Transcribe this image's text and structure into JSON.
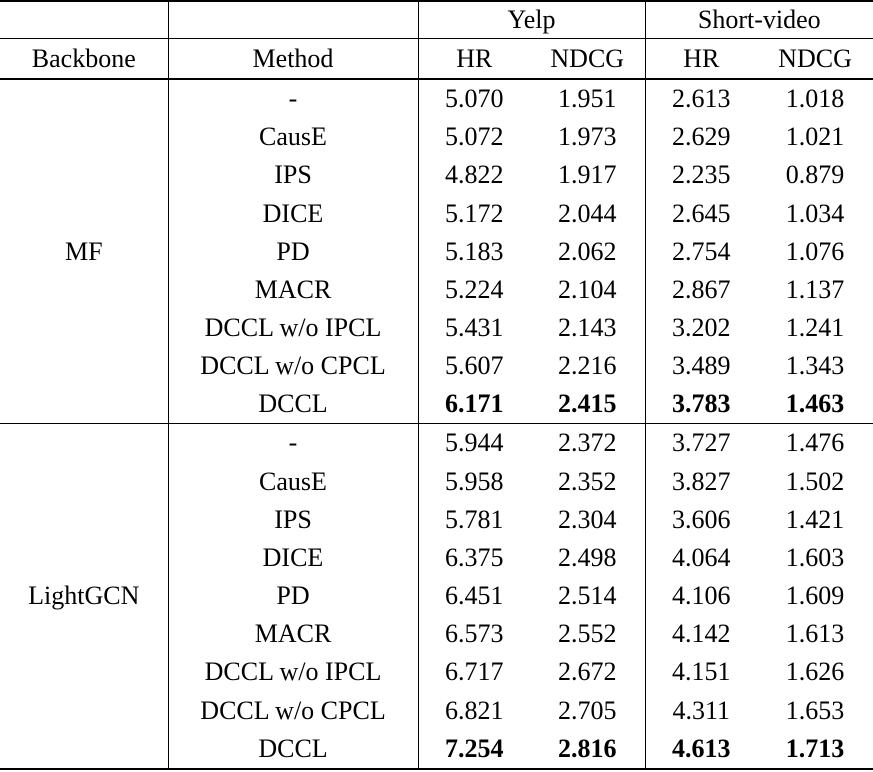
{
  "colors": {
    "text": "#000000",
    "background": "#ffffff",
    "rule": "#000000"
  },
  "table": {
    "header": {
      "backbone": "Backbone",
      "method": "Method",
      "datasets": [
        {
          "name": "Yelp",
          "metrics": [
            "HR",
            "NDCG"
          ]
        },
        {
          "name": "Short-video",
          "metrics": [
            "HR",
            "NDCG"
          ]
        }
      ]
    },
    "groups": [
      {
        "backbone": "MF",
        "rows": [
          {
            "method": "-",
            "values": [
              "5.070",
              "1.951",
              "2.613",
              "1.018"
            ],
            "bold": false
          },
          {
            "method": "CausE",
            "values": [
              "5.072",
              "1.973",
              "2.629",
              "1.021"
            ],
            "bold": false
          },
          {
            "method": "IPS",
            "values": [
              "4.822",
              "1.917",
              "2.235",
              "0.879"
            ],
            "bold": false
          },
          {
            "method": "DICE",
            "values": [
              "5.172",
              "2.044",
              "2.645",
              "1.034"
            ],
            "bold": false
          },
          {
            "method": "PD",
            "values": [
              "5.183",
              "2.062",
              "2.754",
              "1.076"
            ],
            "bold": false
          },
          {
            "method": "MACR",
            "values": [
              "5.224",
              "2.104",
              "2.867",
              "1.137"
            ],
            "bold": false
          },
          {
            "method": "DCCL w/o IPCL",
            "values": [
              "5.431",
              "2.143",
              "3.202",
              "1.241"
            ],
            "bold": false
          },
          {
            "method": "DCCL w/o CPCL",
            "values": [
              "5.607",
              "2.216",
              "3.489",
              "1.343"
            ],
            "bold": false
          },
          {
            "method": "DCCL",
            "values": [
              "6.171",
              "2.415",
              "3.783",
              "1.463"
            ],
            "bold": true
          }
        ]
      },
      {
        "backbone": "LightGCN",
        "rows": [
          {
            "method": "-",
            "values": [
              "5.944",
              "2.372",
              "3.727",
              "1.476"
            ],
            "bold": false
          },
          {
            "method": "CausE",
            "values": [
              "5.958",
              "2.352",
              "3.827",
              "1.502"
            ],
            "bold": false
          },
          {
            "method": "IPS",
            "values": [
              "5.781",
              "2.304",
              "3.606",
              "1.421"
            ],
            "bold": false
          },
          {
            "method": "DICE",
            "values": [
              "6.375",
              "2.498",
              "4.064",
              "1.603"
            ],
            "bold": false
          },
          {
            "method": "PD",
            "values": [
              "6.451",
              "2.514",
              "4.106",
              "1.609"
            ],
            "bold": false
          },
          {
            "method": "MACR",
            "values": [
              "6.573",
              "2.552",
              "4.142",
              "1.613"
            ],
            "bold": false
          },
          {
            "method": "DCCL w/o IPCL",
            "values": [
              "6.717",
              "2.672",
              "4.151",
              "1.626"
            ],
            "bold": false
          },
          {
            "method": "DCCL w/o CPCL",
            "values": [
              "6.821",
              "2.705",
              "4.311",
              "1.653"
            ],
            "bold": false
          },
          {
            "method": "DCCL",
            "values": [
              "7.254",
              "2.816",
              "4.613",
              "1.713"
            ],
            "bold": true
          }
        ]
      }
    ]
  }
}
